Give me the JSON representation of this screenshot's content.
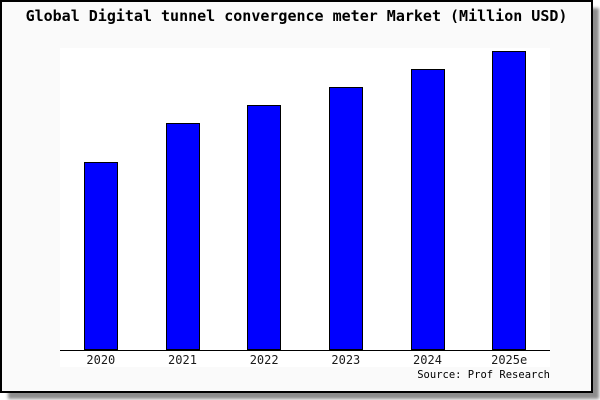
{
  "card": {
    "title": "Global Digital tunnel convergence meter Market (Million USD)",
    "source": "Source: Prof Research"
  },
  "chart_data": {
    "type": "bar",
    "title": "Global Digital tunnel convergence meter Market (Million USD)",
    "categories": [
      "2020",
      "2021",
      "2022",
      "2023",
      "2024",
      "2025e"
    ],
    "values": [
      63,
      76,
      82,
      88,
      94,
      100
    ],
    "values_note": "y-axis is unlabeled in the image; values are relative estimates from bar heights with 2025e = 100",
    "ylim": [
      0,
      101
    ],
    "xlabel": "",
    "ylabel": "",
    "grid": false,
    "legend": null,
    "bar_color": "#0000ff",
    "bar_border_color": "#000000",
    "source": "Source: Prof Research"
  },
  "colors": {
    "figure_background": "#fafafa",
    "plot_background": "#ffffff",
    "bar_fill": "#0000ff",
    "axis": "#000000",
    "text": "#000000"
  }
}
